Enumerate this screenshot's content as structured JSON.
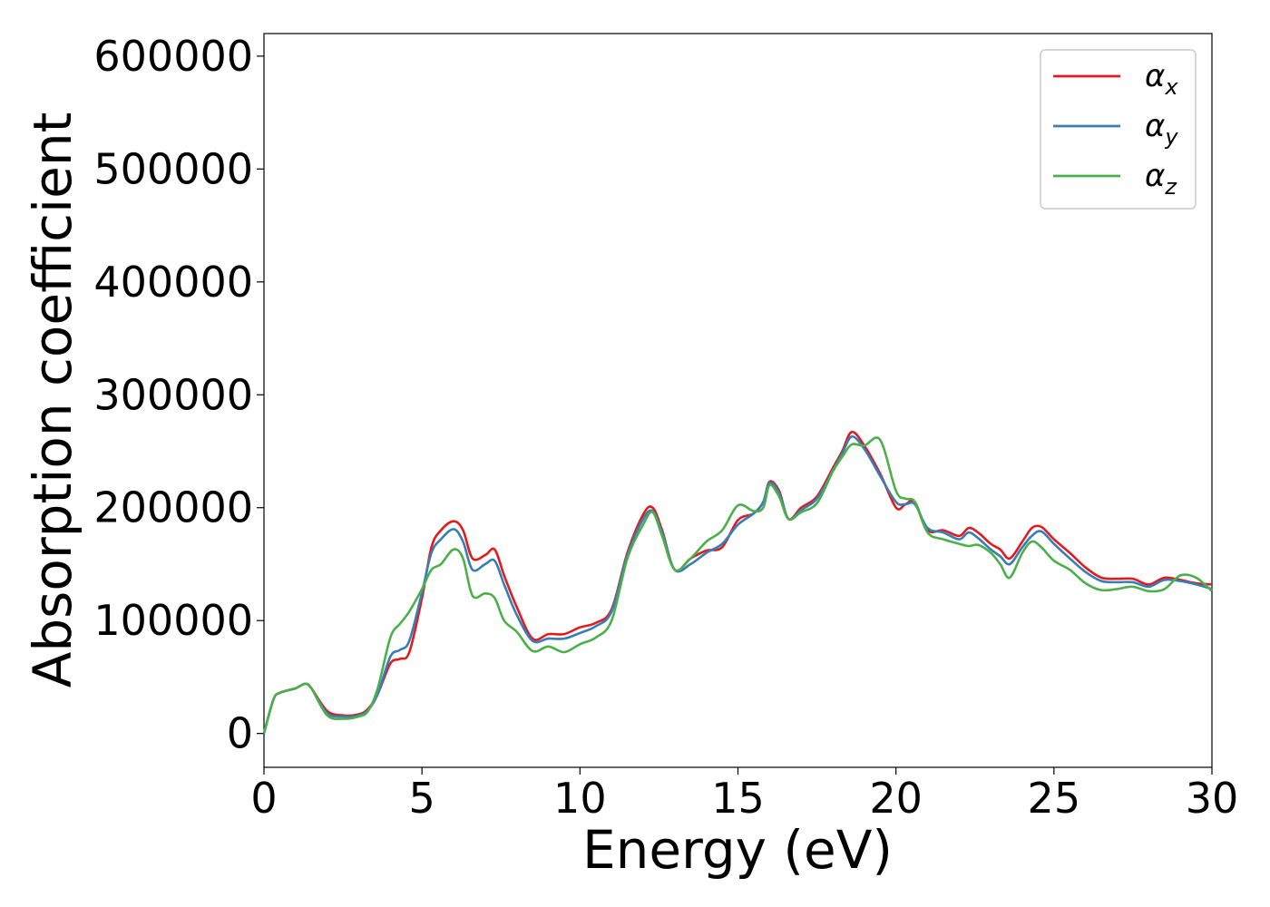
{
  "chart_data": {
    "type": "line",
    "xlabel": "Energy (eV)",
    "ylabel": "Absorption coefficient",
    "xlim": [
      0,
      30
    ],
    "ylim": [
      -30000,
      620000
    ],
    "xticks": [
      0,
      5,
      10,
      15,
      20,
      25,
      30
    ],
    "yticks": [
      0,
      100000,
      200000,
      300000,
      400000,
      500000,
      600000
    ],
    "grid": false,
    "legend_position": "top-right",
    "series": [
      {
        "name": "αx",
        "legend_symbol": "α",
        "legend_subscript": "x",
        "color": "#e41a1c",
        "x": [
          0,
          0.3,
          0.5,
          1,
          1.3,
          1.5,
          2,
          2.5,
          3,
          3.3,
          3.6,
          4,
          4.3,
          4.6,
          5,
          5.3,
          5.6,
          6,
          6.3,
          6.6,
          7,
          7.3,
          7.6,
          8,
          8.5,
          9,
          9.5,
          10,
          10.5,
          11,
          11.5,
          12,
          12.3,
          12.6,
          13,
          13.5,
          14,
          14.5,
          15,
          15.5,
          15.8,
          16,
          16.3,
          16.6,
          17,
          17.5,
          18,
          18.3,
          18.6,
          19,
          19.5,
          20,
          20.3,
          20.6,
          21,
          21.5,
          22,
          22.3,
          22.6,
          23,
          23.3,
          23.6,
          24,
          24.3,
          24.6,
          25,
          25.5,
          26,
          26.5,
          27,
          27.5,
          28,
          28.5,
          29,
          29.5,
          30
        ],
        "y": [
          0,
          30000,
          36000,
          40000,
          44000,
          40000,
          20000,
          16000,
          17000,
          22000,
          35000,
          62000,
          66000,
          72000,
          120000,
          165000,
          180000,
          188000,
          180000,
          155000,
          158000,
          163000,
          140000,
          112000,
          84000,
          88000,
          88000,
          94000,
          98000,
          110000,
          160000,
          194000,
          200000,
          180000,
          145000,
          155000,
          162000,
          165000,
          189000,
          195000,
          205000,
          223000,
          215000,
          190000,
          200000,
          210000,
          235000,
          250000,
          267000,
          255000,
          230000,
          200000,
          203000,
          205000,
          180000,
          180000,
          175000,
          182000,
          178000,
          168000,
          163000,
          155000,
          170000,
          182000,
          183000,
          172000,
          160000,
          147000,
          138000,
          137000,
          137000,
          132000,
          138000,
          136000,
          133000,
          132000
        ]
      },
      {
        "name": "αy",
        "legend_symbol": "α",
        "legend_subscript": "y",
        "color": "#377eb8",
        "x": [
          0,
          0.3,
          0.5,
          1,
          1.3,
          1.5,
          2,
          2.5,
          3,
          3.3,
          3.6,
          4,
          4.3,
          4.6,
          5,
          5.3,
          5.6,
          6,
          6.3,
          6.6,
          7,
          7.3,
          7.6,
          8,
          8.5,
          9,
          9.5,
          10,
          10.5,
          11,
          11.5,
          12,
          12.3,
          12.6,
          13,
          13.5,
          14,
          14.5,
          15,
          15.5,
          15.8,
          16,
          16.3,
          16.6,
          17,
          17.5,
          18,
          18.3,
          18.6,
          19,
          19.5,
          20,
          20.3,
          20.6,
          21,
          21.5,
          22,
          22.3,
          22.6,
          23,
          23.3,
          23.6,
          24,
          24.3,
          24.6,
          25,
          25.5,
          26,
          26.5,
          27,
          27.5,
          28,
          28.5,
          29,
          29.5,
          30
        ],
        "y": [
          0,
          30000,
          36000,
          40000,
          44000,
          40000,
          18000,
          15000,
          16000,
          21000,
          35000,
          68000,
          74000,
          82000,
          125000,
          160000,
          172000,
          181000,
          170000,
          145000,
          150000,
          153000,
          132000,
          105000,
          82000,
          84000,
          84000,
          89000,
          95000,
          108000,
          158000,
          190000,
          197000,
          178000,
          145000,
          150000,
          160000,
          168000,
          185000,
          195000,
          205000,
          222000,
          213000,
          190000,
          198000,
          208000,
          233000,
          248000,
          263000,
          252000,
          228000,
          205000,
          203000,
          203000,
          182000,
          178000,
          172000,
          178000,
          173000,
          163000,
          157000,
          150000,
          165000,
          175000,
          179000,
          168000,
          155000,
          143000,
          135000,
          134000,
          134000,
          130000,
          136000,
          135000,
          132000,
          128000
        ]
      },
      {
        "name": "αz",
        "legend_symbol": "α",
        "legend_subscript": "z",
        "color": "#4daf4a",
        "x": [
          0,
          0.3,
          0.5,
          1,
          1.3,
          1.5,
          2,
          2.5,
          3,
          3.3,
          3.6,
          4,
          4.3,
          4.6,
          5,
          5.3,
          5.6,
          6,
          6.3,
          6.6,
          7,
          7.3,
          7.6,
          8,
          8.5,
          9,
          9.5,
          10,
          10.5,
          11,
          11.5,
          12,
          12.3,
          12.6,
          13,
          13.5,
          14,
          14.5,
          15,
          15.5,
          15.8,
          16,
          16.3,
          16.6,
          17,
          17.5,
          18,
          18.3,
          18.6,
          19,
          19.5,
          20,
          20.3,
          20.6,
          21,
          21.5,
          22,
          22.3,
          22.6,
          23,
          23.3,
          23.6,
          24,
          24.3,
          24.6,
          25,
          25.5,
          26,
          26.5,
          27,
          27.5,
          28,
          28.5,
          29,
          29.5,
          30
        ],
        "y": [
          0,
          30000,
          36000,
          40000,
          44000,
          40000,
          16000,
          13000,
          15000,
          20000,
          40000,
          85000,
          97000,
          108000,
          128000,
          145000,
          150000,
          163000,
          155000,
          122000,
          124000,
          120000,
          100000,
          90000,
          73000,
          77000,
          72000,
          79000,
          85000,
          100000,
          155000,
          185000,
          196000,
          175000,
          145000,
          155000,
          170000,
          180000,
          202000,
          197000,
          200000,
          220000,
          210000,
          190000,
          196000,
          204000,
          232000,
          245000,
          256000,
          255000,
          260000,
          215000,
          208000,
          205000,
          178000,
          172000,
          168000,
          166000,
          167000,
          160000,
          150000,
          138000,
          160000,
          170000,
          165000,
          153000,
          145000,
          133000,
          127000,
          128000,
          130000,
          126000,
          128000,
          140000,
          138000,
          126000
        ]
      }
    ]
  }
}
